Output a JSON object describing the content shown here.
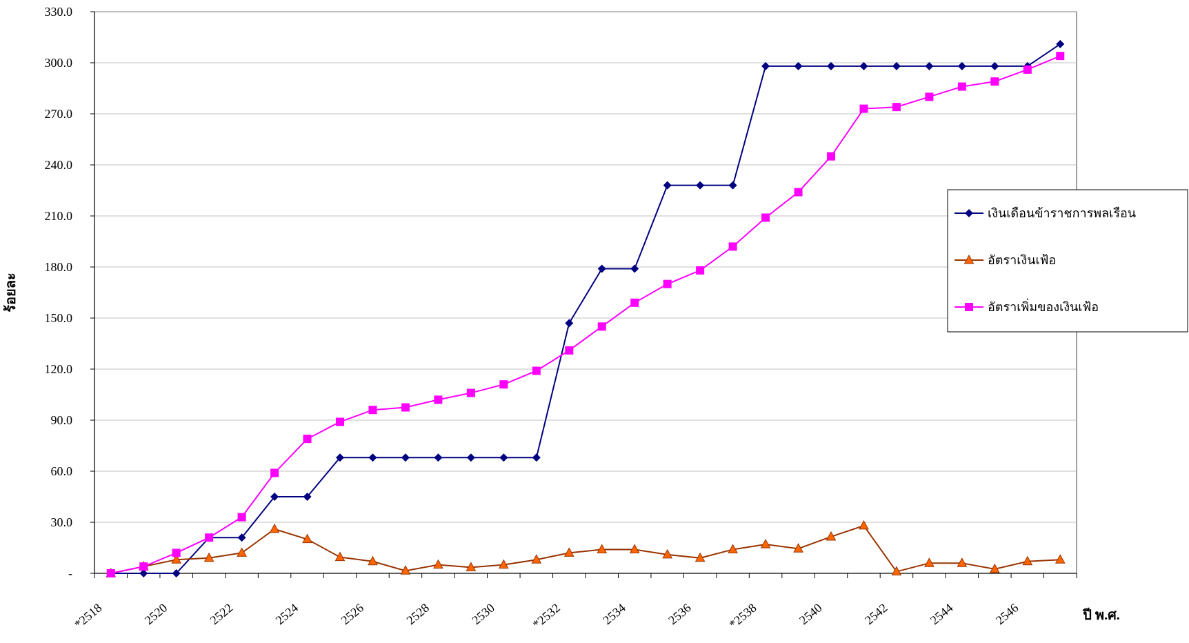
{
  "chart_data": {
    "type": "line",
    "x_label": "ปี พ.ศ.",
    "y_label": "ร้อยละ",
    "categories": [
      "*2518",
      null,
      "2520",
      null,
      "2522",
      null,
      "2524",
      null,
      "2526",
      null,
      "2528",
      null,
      "2530",
      null,
      "*2532",
      null,
      "2534",
      null,
      "2536",
      null,
      "*2538",
      null,
      "2540",
      null,
      "2542",
      null,
      "2544",
      null,
      "2546",
      null
    ],
    "series": [
      {
        "name": "เงินเดือนข้าราชการพลเรือน",
        "color": "#000080",
        "marker": "diamond",
        "marker_color": "#000080",
        "values": [
          0,
          0,
          0,
          21,
          21,
          45,
          45,
          68,
          68,
          68,
          68,
          68,
          68,
          68,
          147,
          179,
          179,
          228,
          228,
          228,
          298,
          298,
          298,
          298,
          298,
          298,
          298,
          298,
          298,
          311
        ]
      },
      {
        "name": "อัตราเงินเฟ้อ",
        "color": "#993300",
        "marker": "triangle",
        "marker_color": "#ff6600",
        "values": [
          0,
          4,
          8,
          9,
          12,
          26,
          20,
          9.5,
          7,
          1.5,
          5,
          3.5,
          5,
          8,
          12,
          14,
          14,
          11,
          9,
          14,
          17,
          14.5,
          21.5,
          28,
          1,
          6,
          6,
          2.5,
          7,
          8
        ]
      },
      {
        "name": "อัตราเพิ่มของเงินเฟ้อ",
        "color": "#ff00ff",
        "marker": "square",
        "marker_color": "#ff00ff",
        "values": [
          0,
          4,
          12,
          21,
          33,
          59,
          79,
          89,
          96,
          97.5,
          102,
          106,
          111,
          119,
          131,
          145,
          159,
          170,
          178,
          192,
          209,
          224,
          245,
          273,
          274,
          280,
          286,
          289,
          296,
          304
        ]
      }
    ],
    "ylim": [
      0,
      330
    ],
    "yticks": [
      {
        "value": 0,
        "label": "-"
      },
      {
        "value": 30,
        "label": "30.0"
      },
      {
        "value": 60,
        "label": "60.0"
      },
      {
        "value": 90,
        "label": "90.0"
      },
      {
        "value": 120,
        "label": "120.0"
      },
      {
        "value": 150,
        "label": "150.0"
      },
      {
        "value": 180,
        "label": "180.0"
      },
      {
        "value": 210,
        "label": "210.0"
      },
      {
        "value": 240,
        "label": "240.0"
      },
      {
        "value": 270,
        "label": "270.0"
      },
      {
        "value": 300,
        "label": "300.0"
      },
      {
        "value": 330,
        "label": "330.0"
      }
    ],
    "grid": true,
    "legend": "right"
  }
}
